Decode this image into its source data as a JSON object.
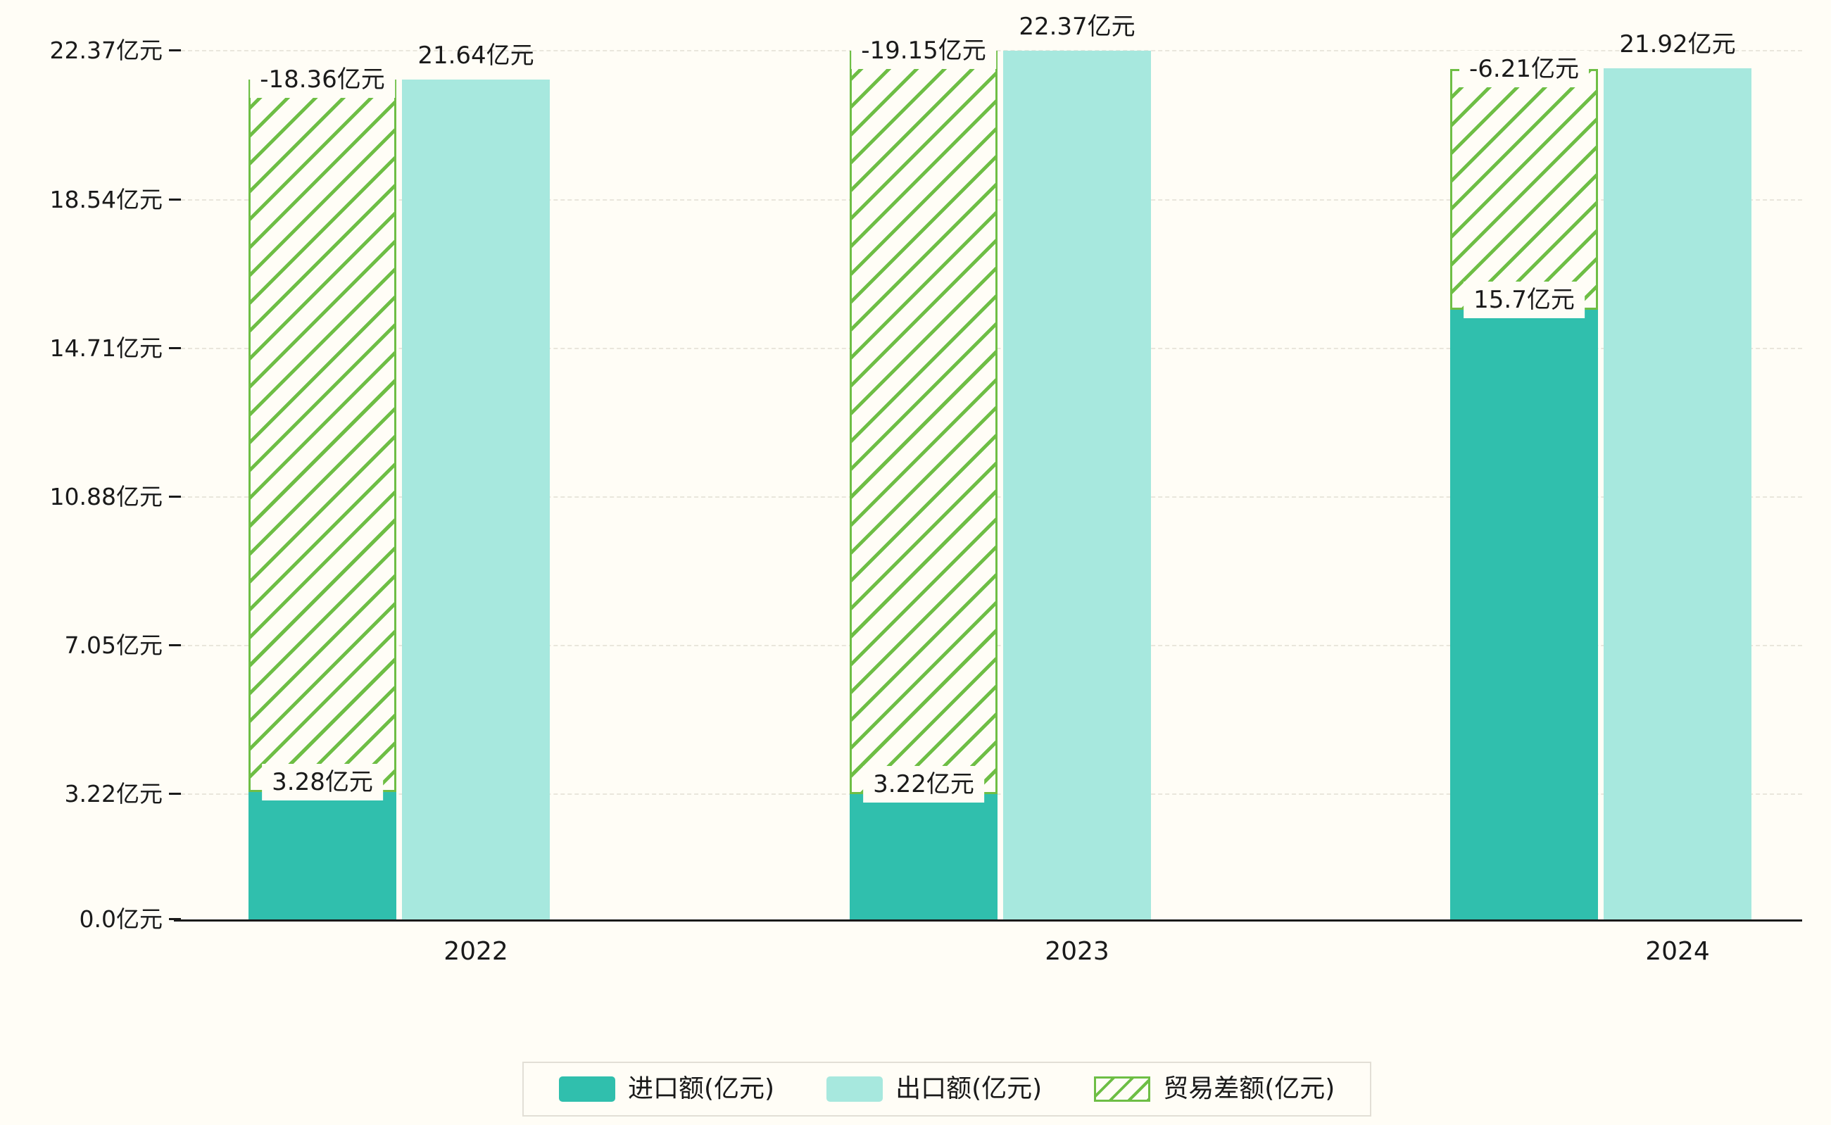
{
  "page": {
    "background_color": "#fffdf6",
    "axis_color": "#1a1a1a",
    "gridline_color": "#e9e6dc"
  },
  "chart_data": {
    "type": "bar",
    "title": "",
    "xlabel": "",
    "ylabel": "",
    "unit": "亿元",
    "categories": [
      "2022",
      "2023",
      "2024"
    ],
    "series": [
      {
        "key": "import",
        "name": "进口额(亿元)",
        "values": [
          3.28,
          3.22,
          15.7
        ],
        "data_labels": [
          "3.28亿元",
          "3.22亿元",
          "15.7亿元"
        ],
        "color": "#30bfad",
        "style": "solid"
      },
      {
        "key": "export",
        "name": "出口额(亿元)",
        "values": [
          21.64,
          22.37,
          21.92
        ],
        "data_labels": [
          "21.64亿元",
          "22.37亿元",
          "21.92亿元"
        ],
        "color": "#a7e8de",
        "style": "solid"
      },
      {
        "key": "trade-balance",
        "name": "贸易差额(亿元)",
        "values": [
          -18.36,
          -19.15,
          -6.21
        ],
        "data_labels": [
          "-18.36亿元",
          "-19.15亿元",
          "-6.21亿元"
        ],
        "color": "#6ebe45",
        "style": "hatch",
        "render": "stacked-from-import-to-export"
      }
    ],
    "y_ticks": [
      {
        "value": 0,
        "label": "0.0亿元"
      },
      {
        "value": 3.22,
        "label": "3.22亿元"
      },
      {
        "value": 7.05,
        "label": "7.05亿元"
      },
      {
        "value": 10.88,
        "label": "10.88亿元"
      },
      {
        "value": 14.71,
        "label": "14.71亿元"
      },
      {
        "value": 18.54,
        "label": "18.54亿元"
      },
      {
        "value": 22.37,
        "label": "22.37亿元"
      }
    ],
    "ylim": [
      0,
      22.37
    ],
    "grid": "dashed-horizontal",
    "legend_position": "bottom"
  }
}
